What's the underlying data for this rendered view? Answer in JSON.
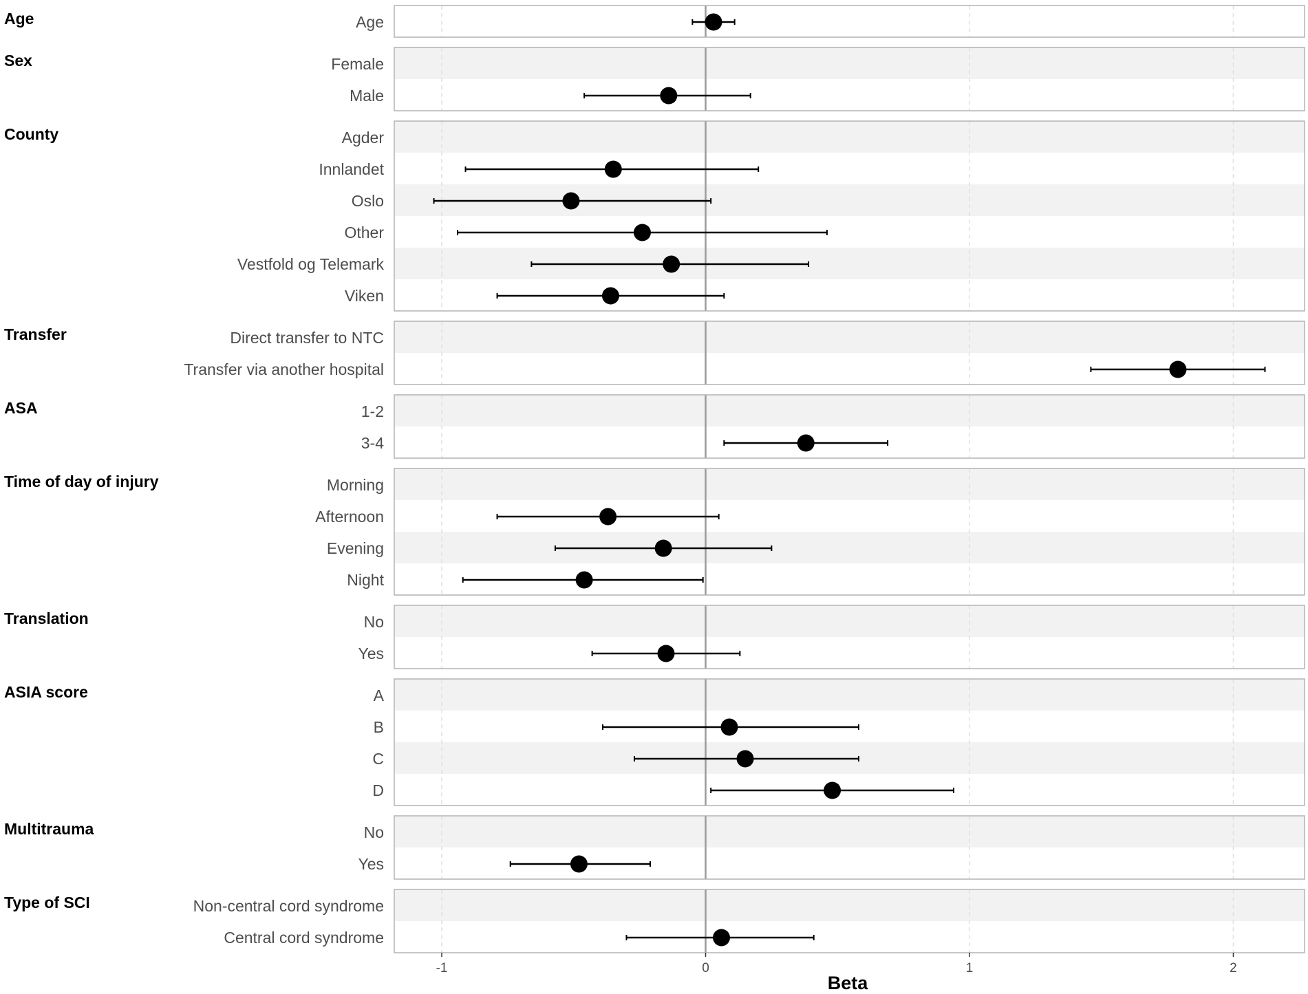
{
  "chart_data": {
    "type": "forest",
    "xlabel": "Beta",
    "xlim": [
      -1.18,
      2.27
    ],
    "xticks": [
      -1,
      0,
      1,
      2
    ],
    "xtick_labels": [
      "-1",
      "0",
      "1",
      "2"
    ],
    "reference_line": 0,
    "colors": {
      "point": "#000000",
      "band": "#f2f2f2",
      "panel_border": "#b3b3b3",
      "reference": "#9a9a9a",
      "grid": "#e0e0e0"
    },
    "groups": [
      {
        "name": "Age",
        "rows": [
          {
            "label": "Age",
            "beta": 0.03,
            "lo": -0.05,
            "hi": 0.11
          }
        ]
      },
      {
        "name": "Sex",
        "rows": [
          {
            "label": "Female",
            "beta": null,
            "lo": null,
            "hi": null
          },
          {
            "label": "Male",
            "beta": -0.14,
            "lo": -0.46,
            "hi": 0.17
          }
        ]
      },
      {
        "name": "County",
        "rows": [
          {
            "label": "Agder",
            "beta": null,
            "lo": null,
            "hi": null
          },
          {
            "label": "Innlandet",
            "beta": -0.35,
            "lo": -0.91,
            "hi": 0.2
          },
          {
            "label": "Oslo",
            "beta": -0.51,
            "lo": -1.03,
            "hi": 0.02
          },
          {
            "label": "Other",
            "beta": -0.24,
            "lo": -0.94,
            "hi": 0.46
          },
          {
            "label": "Vestfold og Telemark",
            "beta": -0.13,
            "lo": -0.66,
            "hi": 0.39
          },
          {
            "label": "Viken",
            "beta": -0.36,
            "lo": -0.79,
            "hi": 0.07
          }
        ]
      },
      {
        "name": "Transfer",
        "rows": [
          {
            "label": "Direct transfer to NTC",
            "beta": null,
            "lo": null,
            "hi": null
          },
          {
            "label": "Transfer via another hospital",
            "beta": 1.79,
            "lo": 1.46,
            "hi": 2.12
          }
        ]
      },
      {
        "name": "ASA",
        "rows": [
          {
            "label": "1-2",
            "beta": null,
            "lo": null,
            "hi": null
          },
          {
            "label": "3-4",
            "beta": 0.38,
            "lo": 0.07,
            "hi": 0.69
          }
        ]
      },
      {
        "name": "Time of day of injury",
        "rows": [
          {
            "label": "Morning",
            "beta": null,
            "lo": null,
            "hi": null
          },
          {
            "label": "Afternoon",
            "beta": -0.37,
            "lo": -0.79,
            "hi": 0.05
          },
          {
            "label": "Evening",
            "beta": -0.16,
            "lo": -0.57,
            "hi": 0.25
          },
          {
            "label": "Night",
            "beta": -0.46,
            "lo": -0.92,
            "hi": -0.01
          }
        ]
      },
      {
        "name": "Translation",
        "rows": [
          {
            "label": "No",
            "beta": null,
            "lo": null,
            "hi": null
          },
          {
            "label": "Yes",
            "beta": -0.15,
            "lo": -0.43,
            "hi": 0.13
          }
        ]
      },
      {
        "name": "ASIA score",
        "rows": [
          {
            "label": "A",
            "beta": null,
            "lo": null,
            "hi": null
          },
          {
            "label": "B",
            "beta": 0.09,
            "lo": -0.39,
            "hi": 0.58
          },
          {
            "label": "C",
            "beta": 0.15,
            "lo": -0.27,
            "hi": 0.58
          },
          {
            "label": "D",
            "beta": 0.48,
            "lo": 0.02,
            "hi": 0.94
          }
        ]
      },
      {
        "name": "Multitrauma",
        "rows": [
          {
            "label": "No",
            "beta": null,
            "lo": null,
            "hi": null
          },
          {
            "label": "Yes",
            "beta": -0.48,
            "lo": -0.74,
            "hi": -0.21
          }
        ]
      },
      {
        "name": "Type of SCI",
        "rows": [
          {
            "label": "Non-central cord syndrome",
            "beta": null,
            "lo": null,
            "hi": null
          },
          {
            "label": "Central cord syndrome",
            "beta": 0.06,
            "lo": -0.3,
            "hi": 0.41
          }
        ]
      }
    ]
  }
}
